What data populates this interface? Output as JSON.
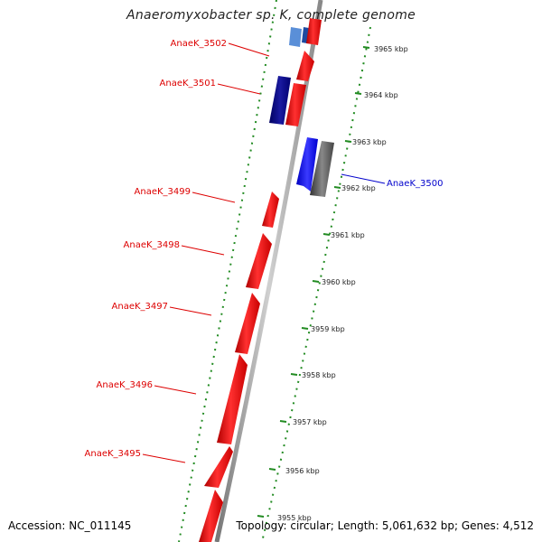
{
  "title": "Anaeromyxobacter sp. K, complete genome",
  "accession": "Accession: NC_011145",
  "summary": "Topology: circular; Length: 5,061,632 bp; Genes: 4,512",
  "colors": {
    "forward_gene": "#ff0000",
    "reverse_gene_blue": "#1a1aff",
    "reverse_gene_navy": "#000080",
    "reverse_gene_gray": "#555555",
    "backbone": "#999999",
    "dotted_track": "#228b22",
    "label_red": "#dd0000",
    "label_blue": "#0000cc"
  },
  "ticks": [
    {
      "label": "3965 kbp"
    },
    {
      "label": "3964 kbp"
    },
    {
      "label": "3963 kbp"
    },
    {
      "label": "3962 kbp"
    },
    {
      "label": "3961 kbp"
    },
    {
      "label": "3960 kbp"
    },
    {
      "label": "3959 kbp"
    },
    {
      "label": "3958 kbp"
    },
    {
      "label": "3957 kbp"
    },
    {
      "label": "3956 kbp"
    },
    {
      "label": "3955 kbp"
    }
  ],
  "gene_labels": [
    {
      "name": "AnaeK_3502",
      "color": "red"
    },
    {
      "name": "AnaeK_3501",
      "color": "red"
    },
    {
      "name": "AnaeK_3500",
      "color": "blue"
    },
    {
      "name": "AnaeK_3499",
      "color": "red"
    },
    {
      "name": "AnaeK_3498",
      "color": "red"
    },
    {
      "name": "AnaeK_3497",
      "color": "red"
    },
    {
      "name": "AnaeK_3496",
      "color": "red"
    },
    {
      "name": "AnaeK_3495",
      "color": "red"
    }
  ]
}
